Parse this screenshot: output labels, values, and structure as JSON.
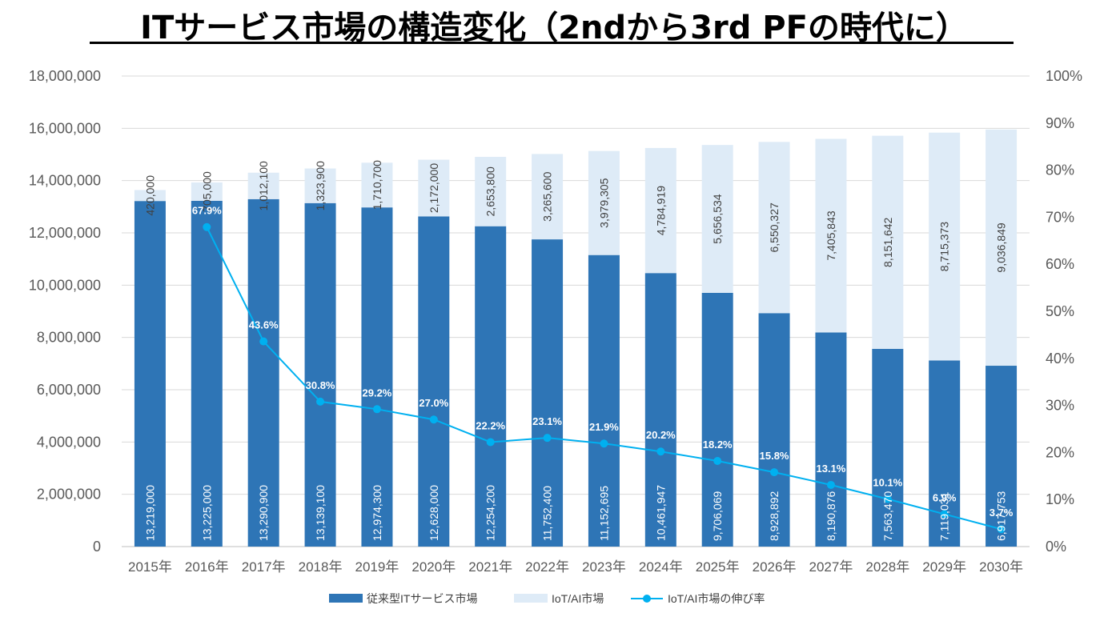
{
  "header": {
    "title": "ITサービス市場の構造変化（2ndから3rd PFの時代に）"
  },
  "colors": {
    "traditional": "#2e75b6",
    "iot_ai": "#deebf7",
    "growth_line": "#00b0f0",
    "grid": "#d9d9d9"
  },
  "chart_data": {
    "type": "bar",
    "stacked": true,
    "title": "ITサービス市場の構造変化（2ndから3rd PFの時代に）",
    "categories": [
      "2015年",
      "2016年",
      "2017年",
      "2018年",
      "2019年",
      "2020年",
      "2021年",
      "2022年",
      "2023年",
      "2024年",
      "2025年",
      "2026年",
      "2027年",
      "2028年",
      "2029年",
      "2030年"
    ],
    "series": [
      {
        "name": "従来型ITサービス市場",
        "type": "bar",
        "axis": "left",
        "values": [
          13219000,
          13225000,
          13290900,
          13139100,
          12974300,
          12628000,
          12254200,
          11752400,
          11152695,
          10461947,
          9706069,
          8928892,
          8190876,
          7563470,
          7119031,
          6917753
        ],
        "labels": [
          "13,219,000",
          "13,225,000",
          "13,290,900",
          "13,139,100",
          "12,974,300",
          "12,628,000",
          "12,254,200",
          "11,752,400",
          "11,152,695",
          "10,461,947",
          "9,706,069",
          "8,928,892",
          "8,190,876",
          "7,563,470",
          "7,119,031",
          "6,917,753"
        ]
      },
      {
        "name": "IoT/AI市場",
        "type": "bar",
        "axis": "left",
        "values": [
          420000,
          705000,
          1012100,
          1323900,
          1710700,
          2172000,
          2653800,
          3265600,
          3979305,
          4784919,
          5656534,
          6550327,
          7405843,
          8151642,
          8715373,
          9036849
        ],
        "labels": [
          "420,000",
          "705,000",
          "1,012,100",
          "1,323,900",
          "1,710,700",
          "2,172,000",
          "2,653,800",
          "3,265,600",
          "3,979,305",
          "4,784,919",
          "5,656,534",
          "6,550,327",
          "7,405,843",
          "8,151,642",
          "8,715,373",
          "9,036,849"
        ]
      },
      {
        "name": "IoT/AI市場の伸び率",
        "type": "line",
        "axis": "right",
        "values": [
          null,
          67.9,
          43.6,
          30.8,
          29.2,
          27.0,
          22.2,
          23.1,
          21.9,
          20.2,
          18.2,
          15.8,
          13.1,
          10.1,
          6.9,
          3.7
        ],
        "labels": [
          null,
          "67.9%",
          "43.6%",
          "30.8%",
          "29.2%",
          "27.0%",
          "22.2%",
          "23.1%",
          "21.9%",
          "20.2%",
          "18.2%",
          "15.8%",
          "13.1%",
          "10.1%",
          "6.9%",
          "3.7%"
        ]
      }
    ],
    "y_left": {
      "range": [
        0,
        18000000
      ],
      "ticks": [
        "0",
        "2,000,000",
        "4,000,000",
        "6,000,000",
        "8,000,000",
        "10,000,000",
        "12,000,000",
        "14,000,000",
        "16,000,000",
        "18,000,000"
      ]
    },
    "y_right": {
      "range": [
        0,
        100
      ],
      "ticks": [
        "0%",
        "10%",
        "20%",
        "30%",
        "40%",
        "50%",
        "60%",
        "70%",
        "80%",
        "90%",
        "100%"
      ]
    },
    "grid": true,
    "legend": {
      "position": "bottom",
      "items": [
        "従来型ITサービス市場",
        "IoT/AI市場",
        "IoT/AI市場の伸び率"
      ]
    }
  }
}
